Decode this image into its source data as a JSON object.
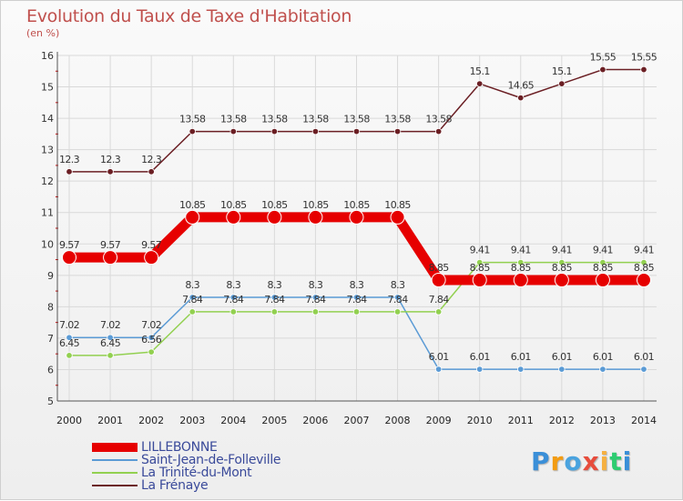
{
  "header": {
    "title": "Evolution du Taux de Taxe d'Habitation",
    "unit": "(en %)"
  },
  "logo": {
    "text": "Proxiti",
    "colors": [
      "#3a8fd8",
      "#f39c12",
      "#4aa3df",
      "#e74c3c",
      "#f5b041",
      "#2ecc71",
      "#3a8fd8"
    ]
  },
  "chart_data": {
    "type": "line",
    "title": "Evolution du Taux de Taxe d'Habitation",
    "ylabel": "(en %)",
    "xlabel": "",
    "x": [
      "2000",
      "2001",
      "2002",
      "2003",
      "2004",
      "2005",
      "2006",
      "2007",
      "2008",
      "2009",
      "2010",
      "2011",
      "2012",
      "2013",
      "2014"
    ],
    "ylim": [
      5,
      16
    ],
    "yticks": [
      5,
      6,
      7,
      8,
      9,
      10,
      11,
      12,
      13,
      14,
      15,
      16
    ],
    "grid": true,
    "legend_position": "bottom-left",
    "series": [
      {
        "name": "LILLEBONNE",
        "color": "#e60000",
        "emphasis": true,
        "values": [
          9.57,
          9.57,
          9.57,
          10.85,
          10.85,
          10.85,
          10.85,
          10.85,
          10.85,
          8.85,
          8.85,
          8.85,
          8.85,
          8.85,
          8.85
        ],
        "labels": [
          "9.57",
          "9.57",
          "9.57",
          "10.85",
          "10.85",
          "10.85",
          "10.85",
          "10.85",
          "10.85",
          "8.85",
          "8.85",
          "8.85",
          "8.85",
          "8.85",
          "8.85"
        ]
      },
      {
        "name": "Saint-Jean-de-Folleville",
        "color": "#5b9bd5",
        "emphasis": false,
        "values": [
          7.02,
          7.02,
          7.02,
          8.3,
          8.3,
          8.3,
          8.3,
          8.3,
          8.3,
          6.01,
          6.01,
          6.01,
          6.01,
          6.01,
          6.01
        ],
        "labels": [
          "7.02",
          "7.02",
          "7.02",
          "8.3",
          "8.3",
          "8.3",
          "8.3",
          "8.3",
          "8.3",
          "6.01",
          "6.01",
          "6.01",
          "6.01",
          "6.01",
          "6.01"
        ]
      },
      {
        "name": "La Trinité-du-Mont",
        "color": "#92d050",
        "emphasis": false,
        "values": [
          6.45,
          6.45,
          6.56,
          7.84,
          7.84,
          7.84,
          7.84,
          7.84,
          7.84,
          7.84,
          9.41,
          9.41,
          9.41,
          9.41,
          9.41
        ],
        "labels": [
          "6.45",
          "6.45",
          "6.56",
          "7.84",
          "7.84",
          "7.84",
          "7.84",
          "7.84",
          "7.84",
          "7.84",
          "9.41",
          "9.41",
          "9.41",
          "9.41",
          "9.41"
        ]
      },
      {
        "name": "La Frénaye",
        "color": "#6b1f24",
        "emphasis": false,
        "values": [
          12.3,
          12.3,
          12.3,
          13.58,
          13.58,
          13.58,
          13.58,
          13.58,
          13.58,
          13.58,
          15.1,
          14.65,
          15.1,
          15.55,
          15.55
        ],
        "labels": [
          "12.3",
          "12.3",
          "12.3",
          "13.58",
          "13.58",
          "13.58",
          "13.58",
          "13.58",
          "13.58",
          "13.58",
          "15.1",
          "14.65",
          "15.1",
          "15.55",
          "15.55"
        ]
      }
    ]
  }
}
